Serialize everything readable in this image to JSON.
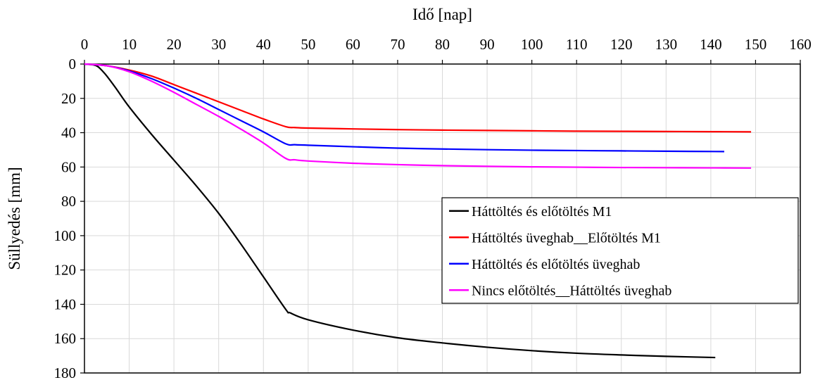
{
  "chart_data": {
    "type": "line",
    "title": "",
    "xlabel": "Idő [nap]",
    "ylabel": "Süllyedés [mm]",
    "xlim": [
      0,
      160
    ],
    "ylim": [
      0,
      180
    ],
    "x_ticks": [
      0,
      10,
      20,
      30,
      40,
      50,
      60,
      70,
      80,
      90,
      100,
      110,
      120,
      130,
      140,
      150,
      160
    ],
    "y_ticks": [
      0,
      20,
      40,
      60,
      80,
      100,
      120,
      140,
      160,
      180
    ],
    "x_axis_position": "top",
    "y_axis_inverted": true,
    "grid": true,
    "legend_position": "right-center",
    "series": [
      {
        "name": "Háttöltés és előtöltés M1",
        "color": "#000000",
        "x": [
          0,
          2,
          3,
          4,
          5,
          7,
          10,
          15,
          20,
          25,
          30,
          35,
          40,
          45,
          46,
          50,
          60,
          70,
          80,
          90,
          100,
          110,
          120,
          130,
          141
        ],
        "y": [
          0,
          0.5,
          1.5,
          4,
          7,
          14,
          25,
          41,
          56,
          71,
          87,
          105,
          124,
          143,
          145,
          149,
          155,
          159.5,
          162.5,
          165,
          167,
          168.5,
          169.5,
          170.3,
          171
        ]
      },
      {
        "name": "Háttöltés üveghab__Előtöltés M1",
        "color": "#ff0000",
        "x": [
          0,
          5,
          10,
          15,
          20,
          25,
          30,
          35,
          40,
          45,
          47,
          50,
          60,
          70,
          80,
          90,
          100,
          110,
          120,
          130,
          140,
          149
        ],
        "y": [
          0,
          1,
          3.5,
          7,
          12,
          17,
          22,
          27,
          32,
          36.5,
          37,
          37.3,
          37.8,
          38.2,
          38.5,
          38.7,
          38.9,
          39.1,
          39.2,
          39.3,
          39.4,
          39.5
        ]
      },
      {
        "name": "Háttöltés és előtöltés üveghab",
        "color": "#0000ff",
        "x": [
          0,
          5,
          10,
          15,
          20,
          25,
          30,
          35,
          40,
          45,
          47,
          50,
          60,
          70,
          80,
          90,
          100,
          110,
          120,
          130,
          143
        ],
        "y": [
          0,
          1,
          4,
          8.5,
          14,
          20,
          26.5,
          33,
          39.5,
          46.5,
          47,
          47.3,
          48.2,
          49,
          49.5,
          49.9,
          50.2,
          50.4,
          50.6,
          50.8,
          51
        ]
      },
      {
        "name": "Nincs előtöltés__Háttöltés üveghab",
        "color": "#ff00ff",
        "x": [
          0,
          5,
          10,
          15,
          20,
          25,
          30,
          35,
          40,
          45,
          47,
          50,
          60,
          70,
          80,
          90,
          100,
          110,
          120,
          130,
          140,
          149
        ],
        "y": [
          0,
          1,
          4.5,
          10,
          16.5,
          23.5,
          30.5,
          38,
          46,
          55,
          55.8,
          56.5,
          57.8,
          58.6,
          59.2,
          59.6,
          59.9,
          60.1,
          60.3,
          60.4,
          60.5,
          60.6
        ]
      }
    ]
  }
}
